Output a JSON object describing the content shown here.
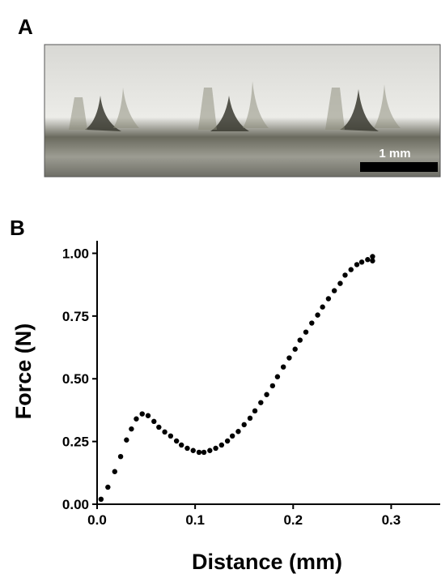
{
  "panel_a": {
    "label": "A",
    "scale_bar": "1 mm"
  },
  "panel_b_label": "B",
  "chart_data": {
    "type": "scatter",
    "x_label": "Distance (mm)",
    "y_label": "Force (N)",
    "xlim": [
      0,
      0.35
    ],
    "ylim": [
      0,
      1.05
    ],
    "xticks": [
      {
        "value": 0,
        "label": "0.0"
      },
      {
        "value": 0.1,
        "label": "0.1"
      },
      {
        "value": 0.2,
        "label": "0.2"
      },
      {
        "value": 0.3,
        "label": "0.3"
      }
    ],
    "yticks": [
      {
        "value": 0,
        "label": "0.00"
      },
      {
        "value": 0.25,
        "label": "0.25"
      },
      {
        "value": 0.5,
        "label": "0.50"
      },
      {
        "value": 0.75,
        "label": "0.75"
      },
      {
        "value": 1,
        "label": "1.00"
      }
    ],
    "color": "#000000",
    "x": [
      0.004,
      0.011,
      0.018,
      0.024,
      0.03,
      0.035,
      0.04,
      0.046,
      0.052,
      0.058,
      0.063,
      0.069,
      0.075,
      0.081,
      0.086,
      0.092,
      0.098,
      0.104,
      0.109,
      0.115,
      0.121,
      0.127,
      0.133,
      0.138,
      0.144,
      0.15,
      0.156,
      0.161,
      0.167,
      0.173,
      0.179,
      0.184,
      0.19,
      0.196,
      0.202,
      0.207,
      0.213,
      0.219,
      0.225,
      0.23,
      0.236,
      0.242,
      0.248,
      0.253,
      0.259,
      0.265,
      0.27,
      0.276,
      0.281,
      0.281
    ],
    "values": [
      0.02,
      0.068,
      0.13,
      0.19,
      0.256,
      0.3,
      0.34,
      0.36,
      0.353,
      0.33,
      0.307,
      0.288,
      0.272,
      0.252,
      0.236,
      0.223,
      0.214,
      0.207,
      0.207,
      0.214,
      0.223,
      0.236,
      0.252,
      0.272,
      0.29,
      0.317,
      0.343,
      0.372,
      0.405,
      0.437,
      0.472,
      0.508,
      0.547,
      0.583,
      0.618,
      0.654,
      0.686,
      0.722,
      0.754,
      0.786,
      0.819,
      0.851,
      0.88,
      0.913,
      0.935,
      0.955,
      0.965,
      0.975,
      0.987,
      0.97
    ]
  }
}
